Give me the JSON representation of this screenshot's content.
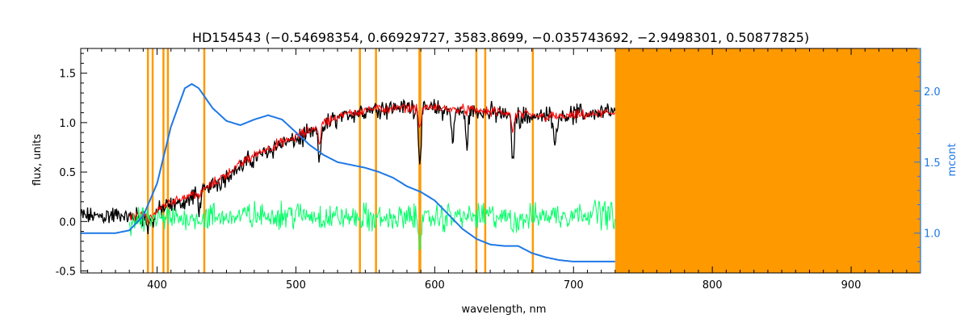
{
  "chart_data": {
    "type": "line",
    "title": "HD154543    (−0.54698354, 0.66929727, 3583.8699, −0.035743692, −2.9498301, 0.50877825)",
    "xlabel": "wavelength, nm",
    "ylabel": "flux, units",
    "y2label": "mcont",
    "xlim": [
      345,
      950
    ],
    "ylim": [
      -0.52,
      1.75
    ],
    "y2lim": [
      0.72,
      2.3
    ],
    "xticks": [
      400,
      500,
      600,
      700,
      800,
      900
    ],
    "yticks": [
      -0.5,
      0.0,
      0.5,
      1.0,
      1.5
    ],
    "y2ticks": [
      1.0,
      1.5,
      2.0
    ],
    "grid": false,
    "legend": "none",
    "shaded_region": {
      "x_start": 730,
      "x_end": 950,
      "color": "#ff9900"
    },
    "vertical_lines": {
      "color": "#ff9900",
      "x": [
        393.4,
        396.8,
        404.6,
        407.8,
        434.0,
        546.1,
        557.7,
        589.0,
        589.6,
        630.0,
        636.4,
        670.7
      ]
    },
    "series": [
      {
        "color": "#000000",
        "axis": "left",
        "x": [
          345,
          360,
          375,
          380,
          390,
          400,
          410,
          420,
          430,
          440,
          450,
          460,
          470,
          480,
          490,
          500,
          510,
          520,
          530,
          540,
          550,
          560,
          570,
          580,
          590,
          600,
          610,
          620,
          630,
          640,
          650,
          660,
          670,
          680,
          690,
          700,
          710,
          720,
          730
        ],
        "y": [
          0.05,
          0.06,
          0.06,
          0.04,
          0.05,
          0.1,
          0.16,
          0.2,
          0.28,
          0.37,
          0.46,
          0.55,
          0.64,
          0.72,
          0.79,
          0.83,
          0.88,
          0.97,
          1.04,
          1.1,
          1.12,
          1.15,
          1.15,
          1.16,
          1.15,
          1.14,
          1.12,
          1.11,
          1.11,
          1.1,
          1.08,
          1.06,
          1.06,
          1.06,
          1.07,
          1.08,
          1.09,
          1.1,
          1.1
        ],
        "noise": 0.17,
        "dips": [
          [
            393.4,
            0.15
          ],
          [
            396.8,
            0.12
          ],
          [
            430.5,
            0.15
          ],
          [
            517.0,
            0.35
          ],
          [
            589.3,
            0.55
          ],
          [
            613.0,
            0.3
          ],
          [
            623.0,
            0.35
          ],
          [
            656.3,
            0.45
          ],
          [
            687.0,
            0.28
          ]
        ]
      },
      {
        "color": "#ff0000",
        "axis": "left",
        "x": [
          380,
          390,
          400,
          410,
          420,
          430,
          440,
          450,
          460,
          470,
          480,
          490,
          500,
          510,
          520,
          530,
          540,
          550,
          560,
          570,
          580,
          590,
          600,
          610,
          620,
          630,
          640,
          650,
          660,
          670,
          680,
          690,
          700,
          710,
          720,
          730
        ],
        "y": [
          0.04,
          0.06,
          0.12,
          0.2,
          0.25,
          0.3,
          0.38,
          0.48,
          0.58,
          0.67,
          0.74,
          0.8,
          0.85,
          0.92,
          1.0,
          1.06,
          1.1,
          1.13,
          1.14,
          1.15,
          1.15,
          1.15,
          1.15,
          1.14,
          1.13,
          1.12,
          1.11,
          1.1,
          1.08,
          1.07,
          1.06,
          1.06,
          1.07,
          1.08,
          1.09,
          1.1
        ],
        "noise": 0.09,
        "dips": [
          [
            393.4,
            0.1
          ],
          [
            396.8,
            0.08
          ],
          [
            430.5,
            0.08
          ],
          [
            517.0,
            0.18
          ],
          [
            589.3,
            0.22
          ],
          [
            656.3,
            0.18
          ]
        ]
      },
      {
        "color": "#00ff66",
        "axis": "left",
        "x": [
          380,
          400,
          420,
          440,
          460,
          480,
          500,
          520,
          540,
          560,
          580,
          600,
          620,
          640,
          660,
          680,
          700,
          720,
          730
        ],
        "y": [
          0.0,
          0.02,
          0.03,
          0.04,
          0.05,
          0.06,
          0.07,
          0.05,
          0.04,
          0.03,
          0.03,
          0.04,
          0.05,
          0.05,
          0.04,
          0.06,
          0.08,
          0.09,
          0.05
        ],
        "noise": 0.24,
        "dips": [
          [
            589.3,
            0.22
          ],
          [
            656.3,
            0.12
          ]
        ]
      },
      {
        "color": "#1e78e6",
        "axis": "right",
        "x": [
          345,
          370,
          380,
          390,
          400,
          410,
          420,
          425,
          430,
          440,
          450,
          460,
          470,
          480,
          490,
          500,
          510,
          520,
          530,
          540,
          550,
          560,
          570,
          580,
          590,
          600,
          610,
          620,
          630,
          640,
          650,
          660,
          670,
          680,
          690,
          700,
          710,
          720,
          730
        ],
        "y": [
          1.0,
          1.0,
          1.02,
          1.12,
          1.35,
          1.75,
          2.02,
          2.05,
          2.02,
          1.88,
          1.79,
          1.76,
          1.8,
          1.83,
          1.8,
          1.71,
          1.62,
          1.55,
          1.5,
          1.48,
          1.46,
          1.43,
          1.39,
          1.33,
          1.29,
          1.23,
          1.13,
          1.03,
          0.96,
          0.92,
          0.91,
          0.91,
          0.86,
          0.83,
          0.81,
          0.8,
          0.8,
          0.8,
          0.8
        ]
      }
    ]
  }
}
